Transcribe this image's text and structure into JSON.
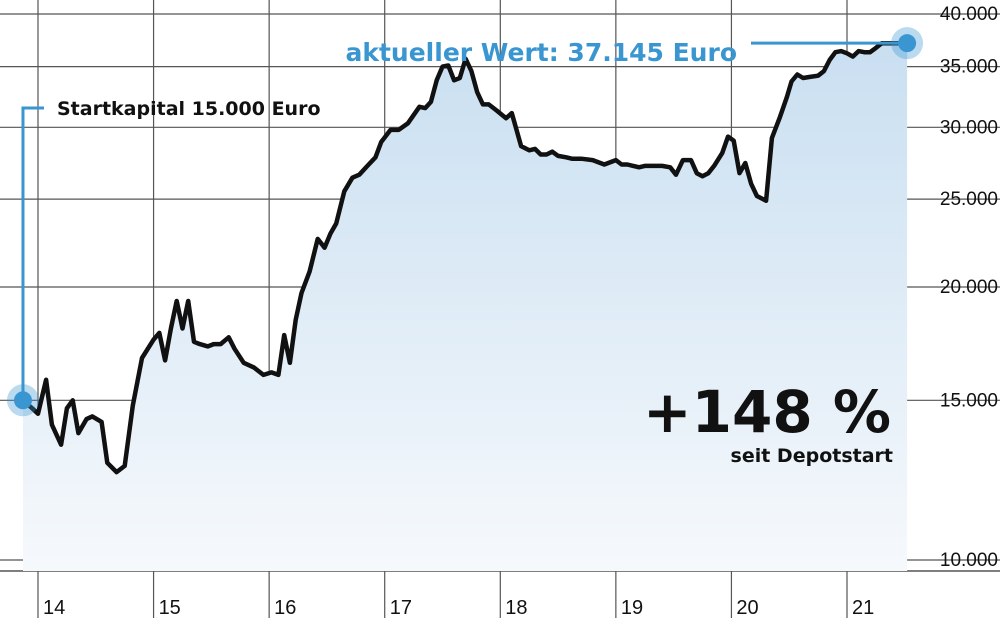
{
  "chart_data": {
    "type": "line",
    "scale": "log",
    "ylim": [
      9400,
      40000
    ],
    "y_ticks": [
      "40.000",
      "35.000",
      "30.000",
      "25.000",
      "20.000",
      "15.000",
      "10.000"
    ],
    "y_tick_values": [
      40000,
      35000,
      30000,
      25000,
      20000,
      15000,
      10000
    ],
    "x_ticks": [
      "14",
      "15",
      "16",
      "17",
      "18",
      "19",
      "20",
      "21"
    ],
    "x_tick_values": [
      2014,
      2015,
      2016,
      2017,
      2018,
      2019,
      2020,
      2021
    ],
    "xlim": [
      2013.87,
      2021.55
    ],
    "grid": true,
    "series": [
      {
        "x": [
          2013.87,
          2013.95,
          2014.0,
          2014.07,
          2014.12,
          2014.2,
          2014.25,
          2014.3,
          2014.35,
          2014.42,
          2014.47,
          2014.55,
          2014.6,
          2014.68,
          2014.75,
          2014.82,
          2014.9,
          2015.0,
          2015.05,
          2015.1,
          2015.15,
          2015.2,
          2015.25,
          2015.3,
          2015.35,
          2015.4,
          2015.47,
          2015.52,
          2015.58,
          2015.65,
          2015.7,
          2015.78,
          2015.87,
          2015.95,
          2016.02,
          2016.08,
          2016.13,
          2016.18,
          2016.23,
          2016.28,
          2016.35,
          2016.42,
          2016.48,
          2016.53,
          2016.58,
          2016.65,
          2016.72,
          2016.78,
          2016.85,
          2016.92,
          2016.97,
          2017.05,
          2017.12,
          2017.2,
          2017.3,
          2017.35,
          2017.4,
          2017.45,
          2017.5,
          2017.55,
          2017.6,
          2017.65,
          2017.7,
          2017.75,
          2017.8,
          2017.85,
          2017.9,
          2017.97,
          2018.05,
          2018.1,
          2018.18,
          2018.25,
          2018.3,
          2018.35,
          2018.4,
          2018.45,
          2018.5,
          2018.57,
          2018.62,
          2018.7,
          2018.8,
          2018.9,
          2019.0,
          2019.05,
          2019.1,
          2019.15,
          2019.2,
          2019.25,
          2019.3,
          2019.35,
          2019.4,
          2019.47,
          2019.52,
          2019.58,
          2019.65,
          2019.7,
          2019.75,
          2019.8,
          2019.85,
          2019.92,
          2019.97,
          2020.02,
          2020.07,
          2020.12,
          2020.17,
          2020.22,
          2020.3,
          2020.35,
          2020.42,
          2020.48,
          2020.52,
          2020.57,
          2020.62,
          2020.68,
          2020.75,
          2020.8,
          2020.85,
          2020.9,
          2020.95,
          2021.0,
          2021.05,
          2021.1,
          2021.15,
          2021.2,
          2021.25,
          2021.3,
          2021.35,
          2021.4,
          2021.45,
          2021.5,
          2021.52
        ],
        "values": [
          15000,
          14700,
          14500,
          15800,
          14100,
          13400,
          14700,
          15000,
          13800,
          14300,
          14400,
          14200,
          12800,
          12500,
          12700,
          14800,
          16700,
          17500,
          17800,
          16600,
          18000,
          19300,
          18000,
          19300,
          17400,
          17300,
          17200,
          17300,
          17300,
          17600,
          17100,
          16500,
          16300,
          16000,
          16100,
          16000,
          17700,
          16500,
          18400,
          19700,
          20800,
          22600,
          22100,
          22900,
          23500,
          25500,
          26400,
          26600,
          27200,
          27800,
          28900,
          29800,
          29800,
          30300,
          31600,
          31500,
          32000,
          33800,
          35000,
          35100,
          33800,
          34000,
          35700,
          34600,
          32800,
          31800,
          31800,
          31300,
          30700,
          31100,
          28600,
          28300,
          28400,
          28000,
          28000,
          28200,
          27900,
          27800,
          27700,
          27700,
          27600,
          27300,
          27600,
          27300,
          27300,
          27200,
          27100,
          27200,
          27200,
          27200,
          27200,
          27100,
          26600,
          27600,
          27600,
          26700,
          26500,
          26700,
          27200,
          28100,
          29300,
          29000,
          26700,
          27400,
          26000,
          25200,
          24900,
          29200,
          30800,
          32400,
          33700,
          34300,
          34000,
          34100,
          34200,
          34600,
          35600,
          36300,
          36400,
          36200,
          35900,
          36400,
          36300,
          36300,
          36700,
          37145,
          37145,
          37145,
          37145,
          37145,
          37145
        ]
      }
    ]
  },
  "annotations": {
    "start": "Startkapital 15.000 Euro",
    "end": "aktueller Wert: 37.145 Euro",
    "percent": "+148 %",
    "percent_sub": "seit Depotstart"
  },
  "colors": {
    "accent": "#3a96d1",
    "line": "#111111",
    "fill_top": "#c9dff1",
    "fill_bottom": "#f4f8fc",
    "grid": "#555555"
  }
}
